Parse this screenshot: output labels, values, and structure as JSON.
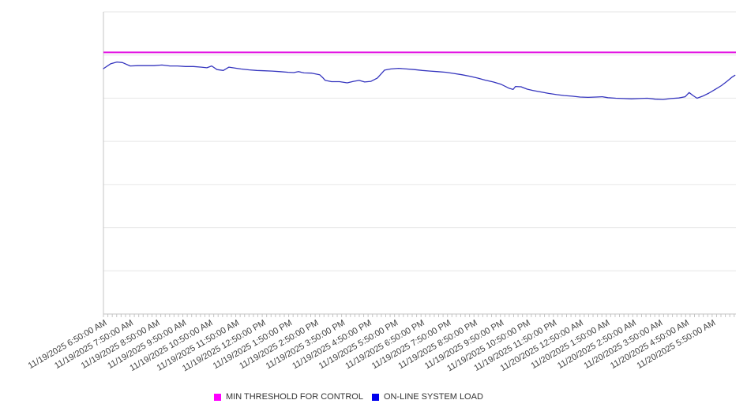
{
  "page": {
    "background": "#ffffff"
  },
  "chart_data": {
    "type": "line",
    "title": "",
    "x_axis": {
      "tick_labels": [
        "11/19/2025 6:50:00 AM",
        "11/19/2025 7:50:00 AM",
        "11/19/2025 8:50:00 AM",
        "11/19/2025 9:50:00 AM",
        "11/19/2025 10:50:00 AM",
        "11/19/2025 11:50:00 AM",
        "11/19/2025 12:50:00 PM",
        "11/19/2025 1:50:00 PM",
        "11/19/2025 2:50:00 PM",
        "11/19/2025 3:50:00 PM",
        "11/19/2025 4:50:00 PM",
        "11/19/2025 5:50:00 PM",
        "11/19/2025 6:50:00 PM",
        "11/19/2025 7:50:00 PM",
        "11/19/2025 8:50:00 PM",
        "11/19/2025 9:50:00 PM",
        "11/19/2025 10:50:00 PM",
        "11/19/2025 11:50:00 PM",
        "11/20/2025 12:50:00 AM",
        "11/20/2025 1:50:00 AM",
        "11/20/2025 2:50:00 AM",
        "11/20/2025 3:50:00 AM",
        "11/20/2025 4:50:00 AM",
        "11/20/2025 5:50:00 AM"
      ],
      "label_rotation_deg": -30,
      "minor_tick_count": 144,
      "points_per_hour": 6,
      "hours_span": 23.87,
      "tick_color": "#c4c4c4",
      "label_color": "#404040"
    },
    "y_axis": {
      "tick_labels_visible": false,
      "gridline_count": 8,
      "gridline_color": "#e6e6e6",
      "axis_line_color": "#c4c4c4",
      "scale": "percent_of_plot_height",
      "range": [
        0,
        100
      ]
    },
    "series": [
      {
        "name": "MIN THRESHOLD FOR CONTROL",
        "line_color": "#E212E2",
        "legend_color": "#FF00FF",
        "style": "constant",
        "value": 86.6
      },
      {
        "name": "ON-LINE SYSTEM LOAD",
        "line_color": "#3434BE",
        "legend_color": "#0000EE",
        "points": [
          [
            0.0,
            81.2
          ],
          [
            0.27,
            82.8
          ],
          [
            0.51,
            83.4
          ],
          [
            0.72,
            83.2
          ],
          [
            1.01,
            82.1
          ],
          [
            1.31,
            82.2
          ],
          [
            1.61,
            82.2
          ],
          [
            1.91,
            82.2
          ],
          [
            2.21,
            82.4
          ],
          [
            2.51,
            82.1
          ],
          [
            2.8,
            82.1
          ],
          [
            3.1,
            81.9
          ],
          [
            3.4,
            81.9
          ],
          [
            3.7,
            81.7
          ],
          [
            3.91,
            81.5
          ],
          [
            4.09,
            82.1
          ],
          [
            4.29,
            80.9
          ],
          [
            4.53,
            80.6
          ],
          [
            4.74,
            81.7
          ],
          [
            4.89,
            81.5
          ],
          [
            5.19,
            81.1
          ],
          [
            5.49,
            80.8
          ],
          [
            5.79,
            80.6
          ],
          [
            6.08,
            80.5
          ],
          [
            6.38,
            80.4
          ],
          [
            6.68,
            80.2
          ],
          [
            6.98,
            80.0
          ],
          [
            7.19,
            79.9
          ],
          [
            7.37,
            80.2
          ],
          [
            7.58,
            79.8
          ],
          [
            7.87,
            79.7
          ],
          [
            8.17,
            79.2
          ],
          [
            8.3,
            78.1
          ],
          [
            8.38,
            77.3
          ],
          [
            8.62,
            76.9
          ],
          [
            8.92,
            76.9
          ],
          [
            9.21,
            76.5
          ],
          [
            9.45,
            77.0
          ],
          [
            9.66,
            77.3
          ],
          [
            9.87,
            76.8
          ],
          [
            10.11,
            77.0
          ],
          [
            10.35,
            78.1
          ],
          [
            10.62,
            80.7
          ],
          [
            10.86,
            81.1
          ],
          [
            11.15,
            81.3
          ],
          [
            11.45,
            81.1
          ],
          [
            11.75,
            80.9
          ],
          [
            12.05,
            80.6
          ],
          [
            12.35,
            80.4
          ],
          [
            12.64,
            80.2
          ],
          [
            12.94,
            80.0
          ],
          [
            13.24,
            79.6
          ],
          [
            13.54,
            79.2
          ],
          [
            13.84,
            78.7
          ],
          [
            14.13,
            78.1
          ],
          [
            14.43,
            77.4
          ],
          [
            14.73,
            76.8
          ],
          [
            15.03,
            76.0
          ],
          [
            15.33,
            74.7
          ],
          [
            15.48,
            74.3
          ],
          [
            15.57,
            75.3
          ],
          [
            15.78,
            75.2
          ],
          [
            16.01,
            74.4
          ],
          [
            16.22,
            74.0
          ],
          [
            16.52,
            73.5
          ],
          [
            16.82,
            73.0
          ],
          [
            17.12,
            72.6
          ],
          [
            17.41,
            72.3
          ],
          [
            17.71,
            72.1
          ],
          [
            18.01,
            71.8
          ],
          [
            18.31,
            71.7
          ],
          [
            18.61,
            71.8
          ],
          [
            18.85,
            71.9
          ],
          [
            19.06,
            71.6
          ],
          [
            19.36,
            71.4
          ],
          [
            19.65,
            71.3
          ],
          [
            19.95,
            71.2
          ],
          [
            20.25,
            71.3
          ],
          [
            20.55,
            71.4
          ],
          [
            20.85,
            71.1
          ],
          [
            21.15,
            71.0
          ],
          [
            21.44,
            71.3
          ],
          [
            21.74,
            71.5
          ],
          [
            21.98,
            71.9
          ],
          [
            22.13,
            73.3
          ],
          [
            22.28,
            72.3
          ],
          [
            22.43,
            71.4
          ],
          [
            22.64,
            72.1
          ],
          [
            22.88,
            73.1
          ],
          [
            23.11,
            74.3
          ],
          [
            23.35,
            75.6
          ],
          [
            23.56,
            77.0
          ],
          [
            23.74,
            78.3
          ],
          [
            23.86,
            79.0
          ]
        ]
      }
    ],
    "legend": {
      "position": "bottom",
      "items": [
        {
          "label": "MIN THRESHOLD FOR CONTROL",
          "color": "#FF00FF"
        },
        {
          "label": "ON-LINE SYSTEM LOAD",
          "color": "#0000EE"
        }
      ]
    }
  }
}
